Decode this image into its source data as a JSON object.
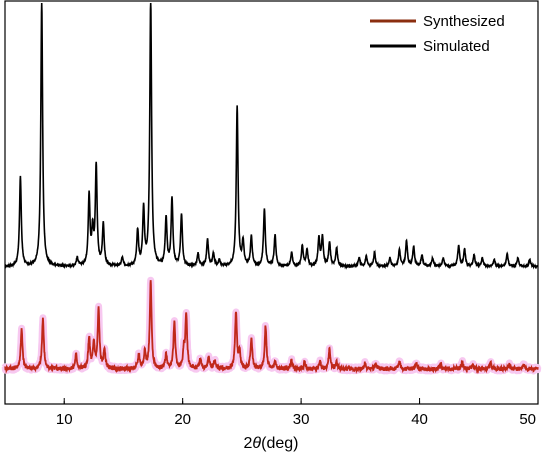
{
  "chart_data": {
    "type": "line",
    "xlabel": "2θ(deg)",
    "xlabel_parts": {
      "var": "θ",
      "prefix": "2",
      "suffix": "(deg)"
    },
    "ylabel": "",
    "xlim": [
      5,
      50
    ],
    "x_ticks": [
      10,
      20,
      30,
      40,
      50
    ],
    "y_ticks_shown": false,
    "legend_position": "top-right",
    "series": [
      {
        "name": "Synthesized",
        "color": "#8B2E0F",
        "halo_color": "#F7C8F0",
        "peaks": [
          [
            6.4,
            0.28
          ],
          [
            8.2,
            0.36
          ],
          [
            11.0,
            0.1
          ],
          [
            12.1,
            0.22
          ],
          [
            12.5,
            0.18
          ],
          [
            12.9,
            0.42
          ],
          [
            13.4,
            0.14
          ],
          [
            16.3,
            0.1
          ],
          [
            16.8,
            0.12
          ],
          [
            17.3,
            0.62
          ],
          [
            18.6,
            0.1
          ],
          [
            19.3,
            0.34
          ],
          [
            20.1,
            0.12
          ],
          [
            20.3,
            0.38
          ],
          [
            21.5,
            0.07
          ],
          [
            22.2,
            0.08
          ],
          [
            22.7,
            0.06
          ],
          [
            24.5,
            0.4
          ],
          [
            24.8,
            0.12
          ],
          [
            25.8,
            0.22
          ],
          [
            27.0,
            0.31
          ],
          [
            27.8,
            0.05
          ],
          [
            29.2,
            0.06
          ],
          [
            30.3,
            0.04
          ],
          [
            31.6,
            0.05
          ],
          [
            32.4,
            0.14
          ],
          [
            33.0,
            0.05
          ],
          [
            35.4,
            0.04
          ],
          [
            36.3,
            0.04
          ],
          [
            38.3,
            0.05
          ],
          [
            39.7,
            0.04
          ],
          [
            41.8,
            0.03
          ],
          [
            43.6,
            0.05
          ],
          [
            44.5,
            0.03
          ],
          [
            46.0,
            0.04
          ],
          [
            47.6,
            0.03
          ],
          [
            48.8,
            0.03
          ]
        ],
        "baseline": 0.0,
        "offset": 0.0
      },
      {
        "name": "Simulated",
        "color": "#000000",
        "peaks": [
          [
            6.3,
            0.64
          ],
          [
            8.1,
            1.9
          ],
          [
            11.1,
            0.06
          ],
          [
            12.1,
            0.5
          ],
          [
            12.4,
            0.24
          ],
          [
            12.7,
            0.71
          ],
          [
            13.3,
            0.3
          ],
          [
            14.9,
            0.06
          ],
          [
            16.2,
            0.25
          ],
          [
            16.7,
            0.4
          ],
          [
            17.3,
            1.91
          ],
          [
            18.6,
            0.34
          ],
          [
            19.1,
            0.48
          ],
          [
            19.9,
            0.37
          ],
          [
            21.3,
            0.09
          ],
          [
            22.1,
            0.19
          ],
          [
            22.6,
            0.09
          ],
          [
            23.1,
            0.04
          ],
          [
            24.6,
            1.14
          ],
          [
            25.1,
            0.17
          ],
          [
            25.8,
            0.21
          ],
          [
            26.9,
            0.41
          ],
          [
            27.8,
            0.22
          ],
          [
            29.2,
            0.1
          ],
          [
            30.1,
            0.15
          ],
          [
            30.5,
            0.12
          ],
          [
            31.5,
            0.2
          ],
          [
            31.8,
            0.21
          ],
          [
            32.4,
            0.17
          ],
          [
            33.0,
            0.13
          ],
          [
            34.9,
            0.06
          ],
          [
            35.5,
            0.07
          ],
          [
            36.2,
            0.1
          ],
          [
            37.5,
            0.06
          ],
          [
            38.3,
            0.12
          ],
          [
            38.9,
            0.18
          ],
          [
            39.5,
            0.14
          ],
          [
            40.2,
            0.08
          ],
          [
            41.1,
            0.06
          ],
          [
            42.0,
            0.06
          ],
          [
            43.3,
            0.15
          ],
          [
            43.8,
            0.12
          ],
          [
            44.6,
            0.08
          ],
          [
            45.3,
            0.06
          ],
          [
            46.3,
            0.05
          ],
          [
            47.4,
            0.09
          ],
          [
            48.3,
            0.06
          ],
          [
            49.3,
            0.05
          ]
        ],
        "baseline": 0.0,
        "offset": 0.55
      }
    ]
  }
}
